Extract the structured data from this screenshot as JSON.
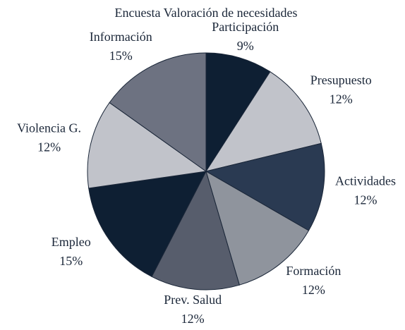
{
  "chart_data": {
    "type": "pie",
    "title": "Encuesta Valoración de necesidades",
    "categories": [
      "Participación",
      "Presupuesto",
      "Actividades",
      "Formación",
      "Prev. Salud",
      "Empleo",
      "Violencia G.",
      "Información"
    ],
    "values": [
      9,
      12,
      12,
      12,
      12,
      15,
      12,
      15
    ],
    "value_labels": [
      "9%",
      "12%",
      "12%",
      "12%",
      "12%",
      "15%",
      "12%",
      "15%"
    ],
    "colors": [
      "#0e1f33",
      "#c1c3ca",
      "#2a3a52",
      "#8f949d",
      "#575d6c",
      "#0e1f33",
      "#c1c3ca",
      "#6d7281"
    ]
  }
}
